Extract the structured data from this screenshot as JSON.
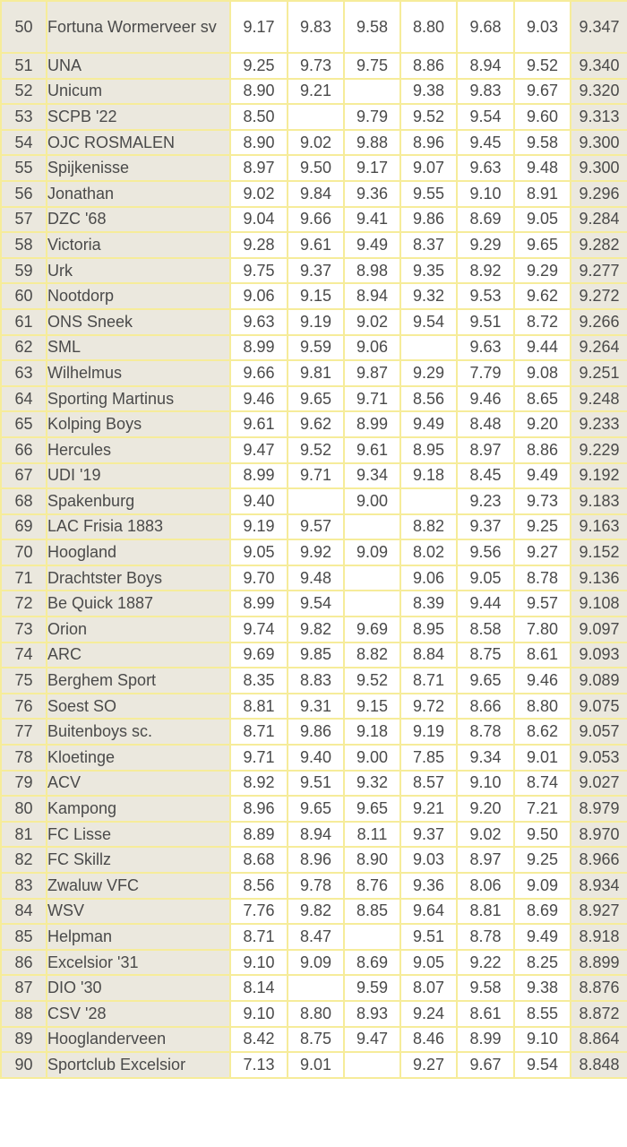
{
  "rows": [
    {
      "rank": "50",
      "club": "Fortuna Wormerveer sv",
      "scores": [
        "9.17",
        "9.83",
        "9.58",
        "8.80",
        "9.68",
        "9.03"
      ],
      "total": "9.347"
    },
    {
      "rank": "51",
      "club": "UNA",
      "scores": [
        "9.25",
        "9.73",
        "9.75",
        "8.86",
        "8.94",
        "9.52"
      ],
      "total": "9.340"
    },
    {
      "rank": "52",
      "club": "Unicum",
      "scores": [
        "8.90",
        "9.21",
        "",
        "9.38",
        "9.83",
        "9.67"
      ],
      "total": "9.320"
    },
    {
      "rank": "53",
      "club": "SCPB '22",
      "scores": [
        "8.50",
        "",
        "9.79",
        "9.52",
        "9.54",
        "9.60"
      ],
      "total": "9.313"
    },
    {
      "rank": "54",
      "club": "OJC ROSMALEN",
      "scores": [
        "8.90",
        "9.02",
        "9.88",
        "8.96",
        "9.45",
        "9.58"
      ],
      "total": "9.300"
    },
    {
      "rank": "55",
      "club": "Spijkenisse",
      "scores": [
        "8.97",
        "9.50",
        "9.17",
        "9.07",
        "9.63",
        "9.48"
      ],
      "total": "9.300"
    },
    {
      "rank": "56",
      "club": "Jonathan",
      "scores": [
        "9.02",
        "9.84",
        "9.36",
        "9.55",
        "9.10",
        "8.91"
      ],
      "total": "9.296"
    },
    {
      "rank": "57",
      "club": "DZC '68",
      "scores": [
        "9.04",
        "9.66",
        "9.41",
        "9.86",
        "8.69",
        "9.05"
      ],
      "total": "9.284"
    },
    {
      "rank": "58",
      "club": "Victoria",
      "scores": [
        "9.28",
        "9.61",
        "9.49",
        "8.37",
        "9.29",
        "9.65"
      ],
      "total": "9.282"
    },
    {
      "rank": "59",
      "club": "Urk",
      "scores": [
        "9.75",
        "9.37",
        "8.98",
        "9.35",
        "8.92",
        "9.29"
      ],
      "total": "9.277"
    },
    {
      "rank": "60",
      "club": "Nootdorp",
      "scores": [
        "9.06",
        "9.15",
        "8.94",
        "9.32",
        "9.53",
        "9.62"
      ],
      "total": "9.272"
    },
    {
      "rank": "61",
      "club": "ONS Sneek",
      "scores": [
        "9.63",
        "9.19",
        "9.02",
        "9.54",
        "9.51",
        "8.72"
      ],
      "total": "9.266"
    },
    {
      "rank": "62",
      "club": "SML",
      "scores": [
        "8.99",
        "9.59",
        "9.06",
        "",
        "9.63",
        "9.44"
      ],
      "total": "9.264"
    },
    {
      "rank": "63",
      "club": "Wilhelmus",
      "scores": [
        "9.66",
        "9.81",
        "9.87",
        "9.29",
        "7.79",
        "9.08"
      ],
      "total": "9.251"
    },
    {
      "rank": "64",
      "club": "Sporting Martinus",
      "scores": [
        "9.46",
        "9.65",
        "9.71",
        "8.56",
        "9.46",
        "8.65"
      ],
      "total": "9.248"
    },
    {
      "rank": "65",
      "club": "Kolping Boys",
      "scores": [
        "9.61",
        "9.62",
        "8.99",
        "9.49",
        "8.48",
        "9.20"
      ],
      "total": "9.233"
    },
    {
      "rank": "66",
      "club": "Hercules",
      "scores": [
        "9.47",
        "9.52",
        "9.61",
        "8.95",
        "8.97",
        "8.86"
      ],
      "total": "9.229"
    },
    {
      "rank": "67",
      "club": "UDI '19",
      "scores": [
        "8.99",
        "9.71",
        "9.34",
        "9.18",
        "8.45",
        "9.49"
      ],
      "total": "9.192"
    },
    {
      "rank": "68",
      "club": "Spakenburg",
      "scores": [
        "9.40",
        "",
        "9.00",
        "",
        "9.23",
        "9.73"
      ],
      "total": "9.183"
    },
    {
      "rank": "69",
      "club": "LAC Frisia 1883",
      "scores": [
        "9.19",
        "9.57",
        "",
        "8.82",
        "9.37",
        "9.25"
      ],
      "total": "9.163"
    },
    {
      "rank": "70",
      "club": "Hoogland",
      "scores": [
        "9.05",
        "9.92",
        "9.09",
        "8.02",
        "9.56",
        "9.27"
      ],
      "total": "9.152"
    },
    {
      "rank": "71",
      "club": "Drachtster Boys",
      "scores": [
        "9.70",
        "9.48",
        "",
        "9.06",
        "9.05",
        "8.78"
      ],
      "total": "9.136"
    },
    {
      "rank": "72",
      "club": "Be Quick 1887",
      "scores": [
        "8.99",
        "9.54",
        "",
        "8.39",
        "9.44",
        "9.57"
      ],
      "total": "9.108"
    },
    {
      "rank": "73",
      "club": "Orion",
      "scores": [
        "9.74",
        "9.82",
        "9.69",
        "8.95",
        "8.58",
        "7.80"
      ],
      "total": "9.097"
    },
    {
      "rank": "74",
      "club": "ARC",
      "scores": [
        "9.69",
        "9.85",
        "8.82",
        "8.84",
        "8.75",
        "8.61"
      ],
      "total": "9.093"
    },
    {
      "rank": "75",
      "club": "Berghem Sport",
      "scores": [
        "8.35",
        "8.83",
        "9.52",
        "8.71",
        "9.65",
        "9.46"
      ],
      "total": "9.089"
    },
    {
      "rank": "76",
      "club": "Soest SO",
      "scores": [
        "8.81",
        "9.31",
        "9.15",
        "9.72",
        "8.66",
        "8.80"
      ],
      "total": "9.075"
    },
    {
      "rank": "77",
      "club": "Buitenboys sc.",
      "scores": [
        "8.71",
        "9.86",
        "9.18",
        "9.19",
        "8.78",
        "8.62"
      ],
      "total": "9.057"
    },
    {
      "rank": "78",
      "club": "Kloetinge",
      "scores": [
        "9.71",
        "9.40",
        "9.00",
        "7.85",
        "9.34",
        "9.01"
      ],
      "total": "9.053"
    },
    {
      "rank": "79",
      "club": "ACV",
      "scores": [
        "8.92",
        "9.51",
        "9.32",
        "8.57",
        "9.10",
        "8.74"
      ],
      "total": "9.027"
    },
    {
      "rank": "80",
      "club": "Kampong",
      "scores": [
        "8.96",
        "9.65",
        "9.65",
        "9.21",
        "9.20",
        "7.21"
      ],
      "total": "8.979"
    },
    {
      "rank": "81",
      "club": "FC Lisse",
      "scores": [
        "8.89",
        "8.94",
        "8.11",
        "9.37",
        "9.02",
        "9.50"
      ],
      "total": "8.970"
    },
    {
      "rank": "82",
      "club": "FC Skillz",
      "scores": [
        "8.68",
        "8.96",
        "8.90",
        "9.03",
        "8.97",
        "9.25"
      ],
      "total": "8.966"
    },
    {
      "rank": "83",
      "club": "Zwaluw VFC",
      "scores": [
        "8.56",
        "9.78",
        "8.76",
        "9.36",
        "8.06",
        "9.09"
      ],
      "total": "8.934"
    },
    {
      "rank": "84",
      "club": "WSV",
      "scores": [
        "7.76",
        "9.82",
        "8.85",
        "9.64",
        "8.81",
        "8.69"
      ],
      "total": "8.927"
    },
    {
      "rank": "85",
      "club": "Helpman",
      "scores": [
        "8.71",
        "8.47",
        "",
        "9.51",
        "8.78",
        "9.49"
      ],
      "total": "8.918"
    },
    {
      "rank": "86",
      "club": "Excelsior '31",
      "scores": [
        "9.10",
        "9.09",
        "8.69",
        "9.05",
        "9.22",
        "8.25"
      ],
      "total": "8.899"
    },
    {
      "rank": "87",
      "club": "DIO '30",
      "scores": [
        "8.14",
        "",
        "9.59",
        "8.07",
        "9.58",
        "9.38"
      ],
      "total": "8.876"
    },
    {
      "rank": "88",
      "club": "CSV '28",
      "scores": [
        "9.10",
        "8.80",
        "8.93",
        "9.24",
        "8.61",
        "8.55"
      ],
      "total": "8.872"
    },
    {
      "rank": "89",
      "club": "Hooglanderveen",
      "scores": [
        "8.42",
        "8.75",
        "9.47",
        "8.46",
        "8.99",
        "9.10"
      ],
      "total": "8.864"
    },
    {
      "rank": "90",
      "club": "Sportclub Excelsior",
      "scores": [
        "7.13",
        "9.01",
        "",
        "9.27",
        "9.67",
        "9.54"
      ],
      "total": "8.848"
    }
  ],
  "colors": {
    "border": "#f6ec9a",
    "shaded_cell": "#ebe8de",
    "plain_cell": "#ffffff",
    "text": "#4a4a4a"
  }
}
